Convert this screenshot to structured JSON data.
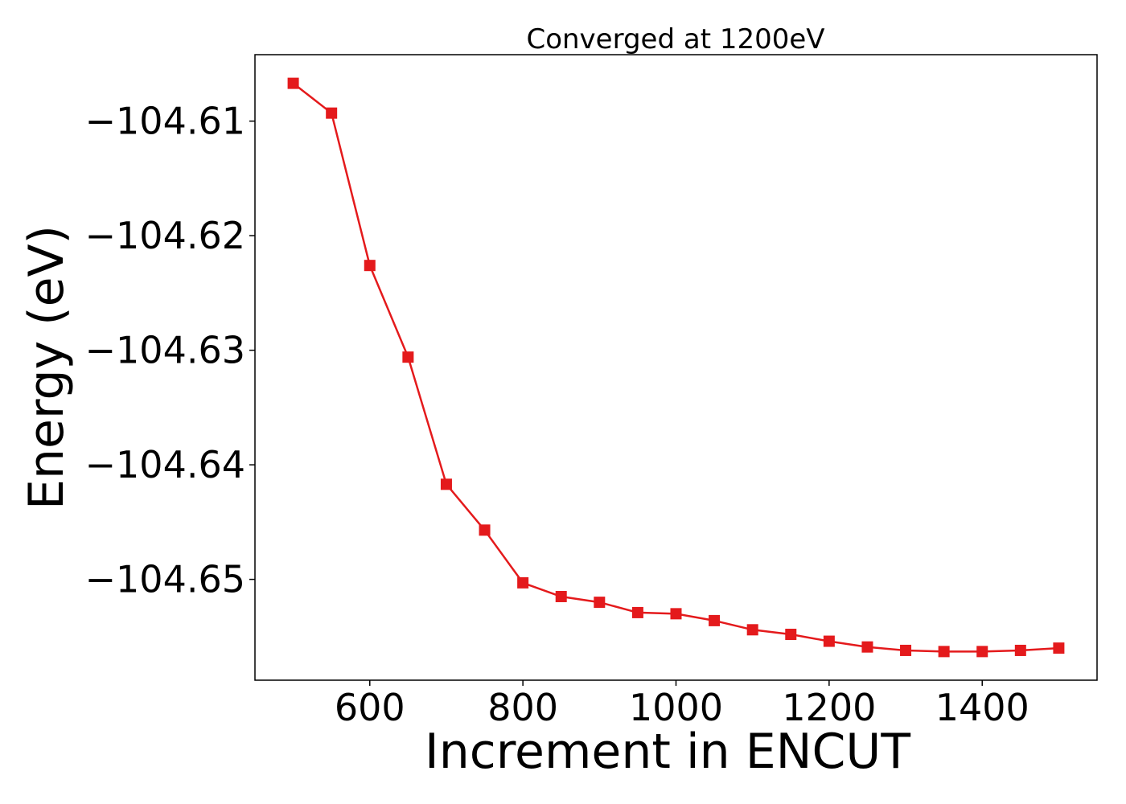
{
  "chart_data": {
    "type": "line",
    "title": "Converged at 1200eV",
    "xlabel": "Increment in ENCUT",
    "ylabel": "Energy (eV)",
    "xlim": [
      450,
      1550
    ],
    "ylim": [
      -104.6588,
      -104.6042
    ],
    "xticks": [
      600,
      800,
      1000,
      1200,
      1400
    ],
    "xtick_labels": [
      "600",
      "800",
      "1000",
      "1200",
      "1400"
    ],
    "yticks": [
      -104.61,
      -104.62,
      -104.63,
      -104.64,
      -104.65
    ],
    "ytick_labels": [
      "−104.61",
      "−104.62",
      "−104.63",
      "−104.64",
      "−104.65"
    ],
    "grid": false,
    "series": [
      {
        "color": "#e41a1c",
        "marker": "square",
        "x": [
          500,
          550,
          600,
          650,
          700,
          750,
          800,
          850,
          900,
          950,
          1000,
          1050,
          1100,
          1150,
          1200,
          1250,
          1300,
          1350,
          1400,
          1450,
          1500
        ],
        "y": [
          -104.6067,
          -104.6093,
          -104.6226,
          -104.6306,
          -104.6417,
          -104.6457,
          -104.6503,
          -104.6515,
          -104.652,
          -104.6529,
          -104.653,
          -104.6536,
          -104.6544,
          -104.6548,
          -104.6554,
          -104.6559,
          -104.6562,
          -104.6563,
          -104.6563,
          -104.6562,
          -104.656
        ]
      }
    ]
  }
}
